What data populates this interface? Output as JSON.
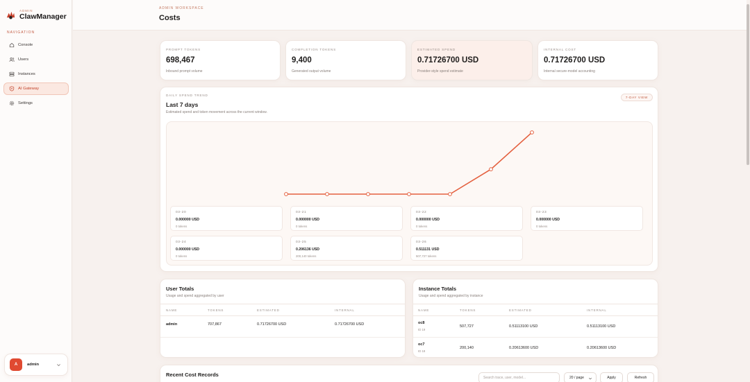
{
  "brand": {
    "kicker": "ADMIN",
    "name": "ClawManager"
  },
  "sidebar": {
    "section_label": "NAVIGATION",
    "items": [
      {
        "label": "Console",
        "icon": "home-icon",
        "active": false
      },
      {
        "label": "Users",
        "icon": "users-icon",
        "active": false
      },
      {
        "label": "Instances",
        "icon": "server-icon",
        "active": false
      },
      {
        "label": "AI Gateway",
        "icon": "shield-icon",
        "active": true
      },
      {
        "label": "Settings",
        "icon": "gear-icon",
        "active": false
      }
    ],
    "user": {
      "initial": "A",
      "name": "admin"
    }
  },
  "header": {
    "kicker": "ADMIN WORKSPACE",
    "title": "Costs"
  },
  "stats": [
    {
      "label": "PROMPT TOKENS",
      "value": "698,467",
      "sub": "Inbound prompt volume"
    },
    {
      "label": "COMPLETION TOKENS",
      "value": "9,400",
      "sub": "Generated output volume"
    },
    {
      "label": "ESTIMATED SPEND",
      "value": "0.71726700 USD",
      "sub": "Provider-style spend estimate"
    },
    {
      "label": "INTERNAL COST",
      "value": "0.71726700 USD",
      "sub": "Internal secure-model accounting"
    }
  ],
  "trend": {
    "kicker": "DAILY SPEND TREND",
    "title": "Last 7 days",
    "subtitle": "Estimated spend and token movement across the current window.",
    "view_chip": "7-DAY VIEW"
  },
  "chart_data": {
    "type": "line",
    "x": [
      "03-20",
      "03-21",
      "03-22",
      "03-23",
      "03-24",
      "03-25",
      "03-26"
    ],
    "series": [
      {
        "values": [
          0.0,
          0.0,
          0.0,
          0.0,
          0.0,
          0.206136,
          0.511131
        ]
      }
    ],
    "color": "#e4603f",
    "ylim": [
      0,
      0.511131
    ],
    "grid": false
  },
  "days": [
    {
      "date": "03-20",
      "usd": "0.000000 USD",
      "tokens": "0 tokens"
    },
    {
      "date": "03-21",
      "usd": "0.000000 USD",
      "tokens": "0 tokens"
    },
    {
      "date": "03-22",
      "usd": "0.000000 USD",
      "tokens": "0 tokens"
    },
    {
      "date": "03-23",
      "usd": "0.000000 USD",
      "tokens": "0 tokens"
    },
    {
      "date": "03-24",
      "usd": "0.000000 USD",
      "tokens": "0 tokens"
    },
    {
      "date": "03-25",
      "usd": "0.206136 USD",
      "tokens": "200,140 tokens"
    },
    {
      "date": "03-26",
      "usd": "0.511131 USD",
      "tokens": "507,727 tokens"
    }
  ],
  "user_totals": {
    "title": "User Totals",
    "subtitle": "Usage and spend aggregated by user",
    "columns": [
      "NAME",
      "TOKENS",
      "ESTIMATED",
      "INTERNAL"
    ],
    "rows": [
      {
        "name": "admin",
        "tokens": "707,867",
        "estimated": "0.71726700 USD",
        "internal": "0.71726700 USD"
      }
    ]
  },
  "instance_totals": {
    "title": "Instance Totals",
    "subtitle": "Usage and spend aggregated by instance",
    "columns": [
      "NAME",
      "TOKENS",
      "ESTIMATED",
      "INTERNAL"
    ],
    "rows": [
      {
        "name": "oc8",
        "id": "ID 19",
        "tokens": "507,727",
        "estimated": "0.51113100 USD",
        "internal": "0.51113100 USD"
      },
      {
        "name": "oc7",
        "id": "ID 18",
        "tokens": "200,140",
        "estimated": "0.20613600 USD",
        "internal": "0.20613600 USD"
      }
    ]
  },
  "records": {
    "title": "Recent Cost Records",
    "search_placeholder": "Search trace, user, model...",
    "page_size": "20 / page",
    "apply_label": "Apply",
    "refresh_label": "Refresh"
  },
  "colors": {
    "accent": "#e04a31",
    "line": "#e4603f",
    "active_bg": "#fbe8e1"
  }
}
